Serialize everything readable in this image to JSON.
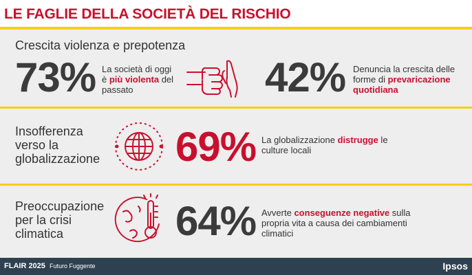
{
  "header": {
    "title": "LE FAGLIE DELLA SOCIETÀ DEL RISCHIO"
  },
  "colors": {
    "accent_red": "#c8102e",
    "accent_yellow": "#f2d300",
    "footer_bg": "#2e4150",
    "panel_bg": "#eeeeee"
  },
  "sections": [
    {
      "label": "Crescita violenza e prepotenza",
      "stats": [
        {
          "value": "73%",
          "text_before": "La società di oggi è ",
          "highlight": "più violenta",
          "text_after": " del passato"
        },
        {
          "value": "42%",
          "text_before": "Denuncia la crescita delle forme di ",
          "highlight": "prevaricazione quotidiana",
          "text_after": ""
        }
      ],
      "icon": "fist-and-hand-icon"
    },
    {
      "label": "Insofferenza verso la globalizzazione",
      "stats": [
        {
          "value": "69%",
          "text_before": "La globalizzazione ",
          "highlight": "distrugge",
          "text_after": " le culture locali"
        }
      ],
      "icon": "globe-icon"
    },
    {
      "label": "Preoccupazione per la crisi climatica",
      "stats": [
        {
          "value": "64%",
          "text_before": "Avverte ",
          "highlight": "conseguenze negative",
          "text_after": " sulla propria vita a causa dei cambiamenti climatici"
        }
      ],
      "icon": "earth-thermometer-icon"
    }
  ],
  "footer": {
    "brand": "FLAIR 2025",
    "separator": "-",
    "subtitle": "Futuro Fuggente",
    "logo": "Ipsos"
  }
}
